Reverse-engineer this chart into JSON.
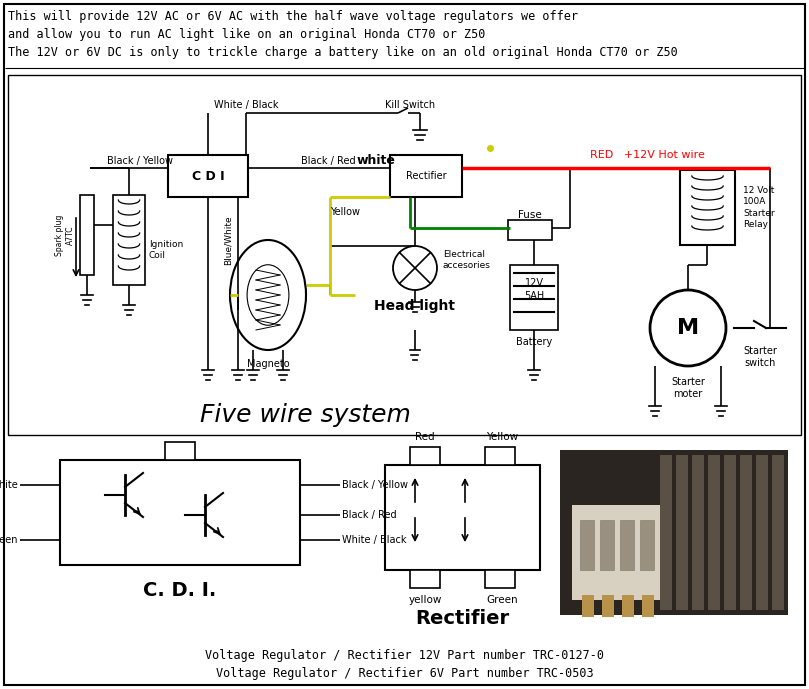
{
  "bg_color": "#ffffff",
  "border_color": "#000000",
  "header_text": [
    "This will provide 12V AC or 6V AC with the half wave voltage regulators we offer",
    "and allow you to run AC light like on an original Honda CT70 or Z50",
    "The 12V or 6V DC is only to trickle charge a battery like on an old original Honda CT70 or Z50"
  ],
  "footer_text": [
    "Voltage Regulator / Rectifier 12V Part number TRC-0127-0",
    "Voltage Regulator / Rectifier 6V Part number TRC-0503"
  ]
}
